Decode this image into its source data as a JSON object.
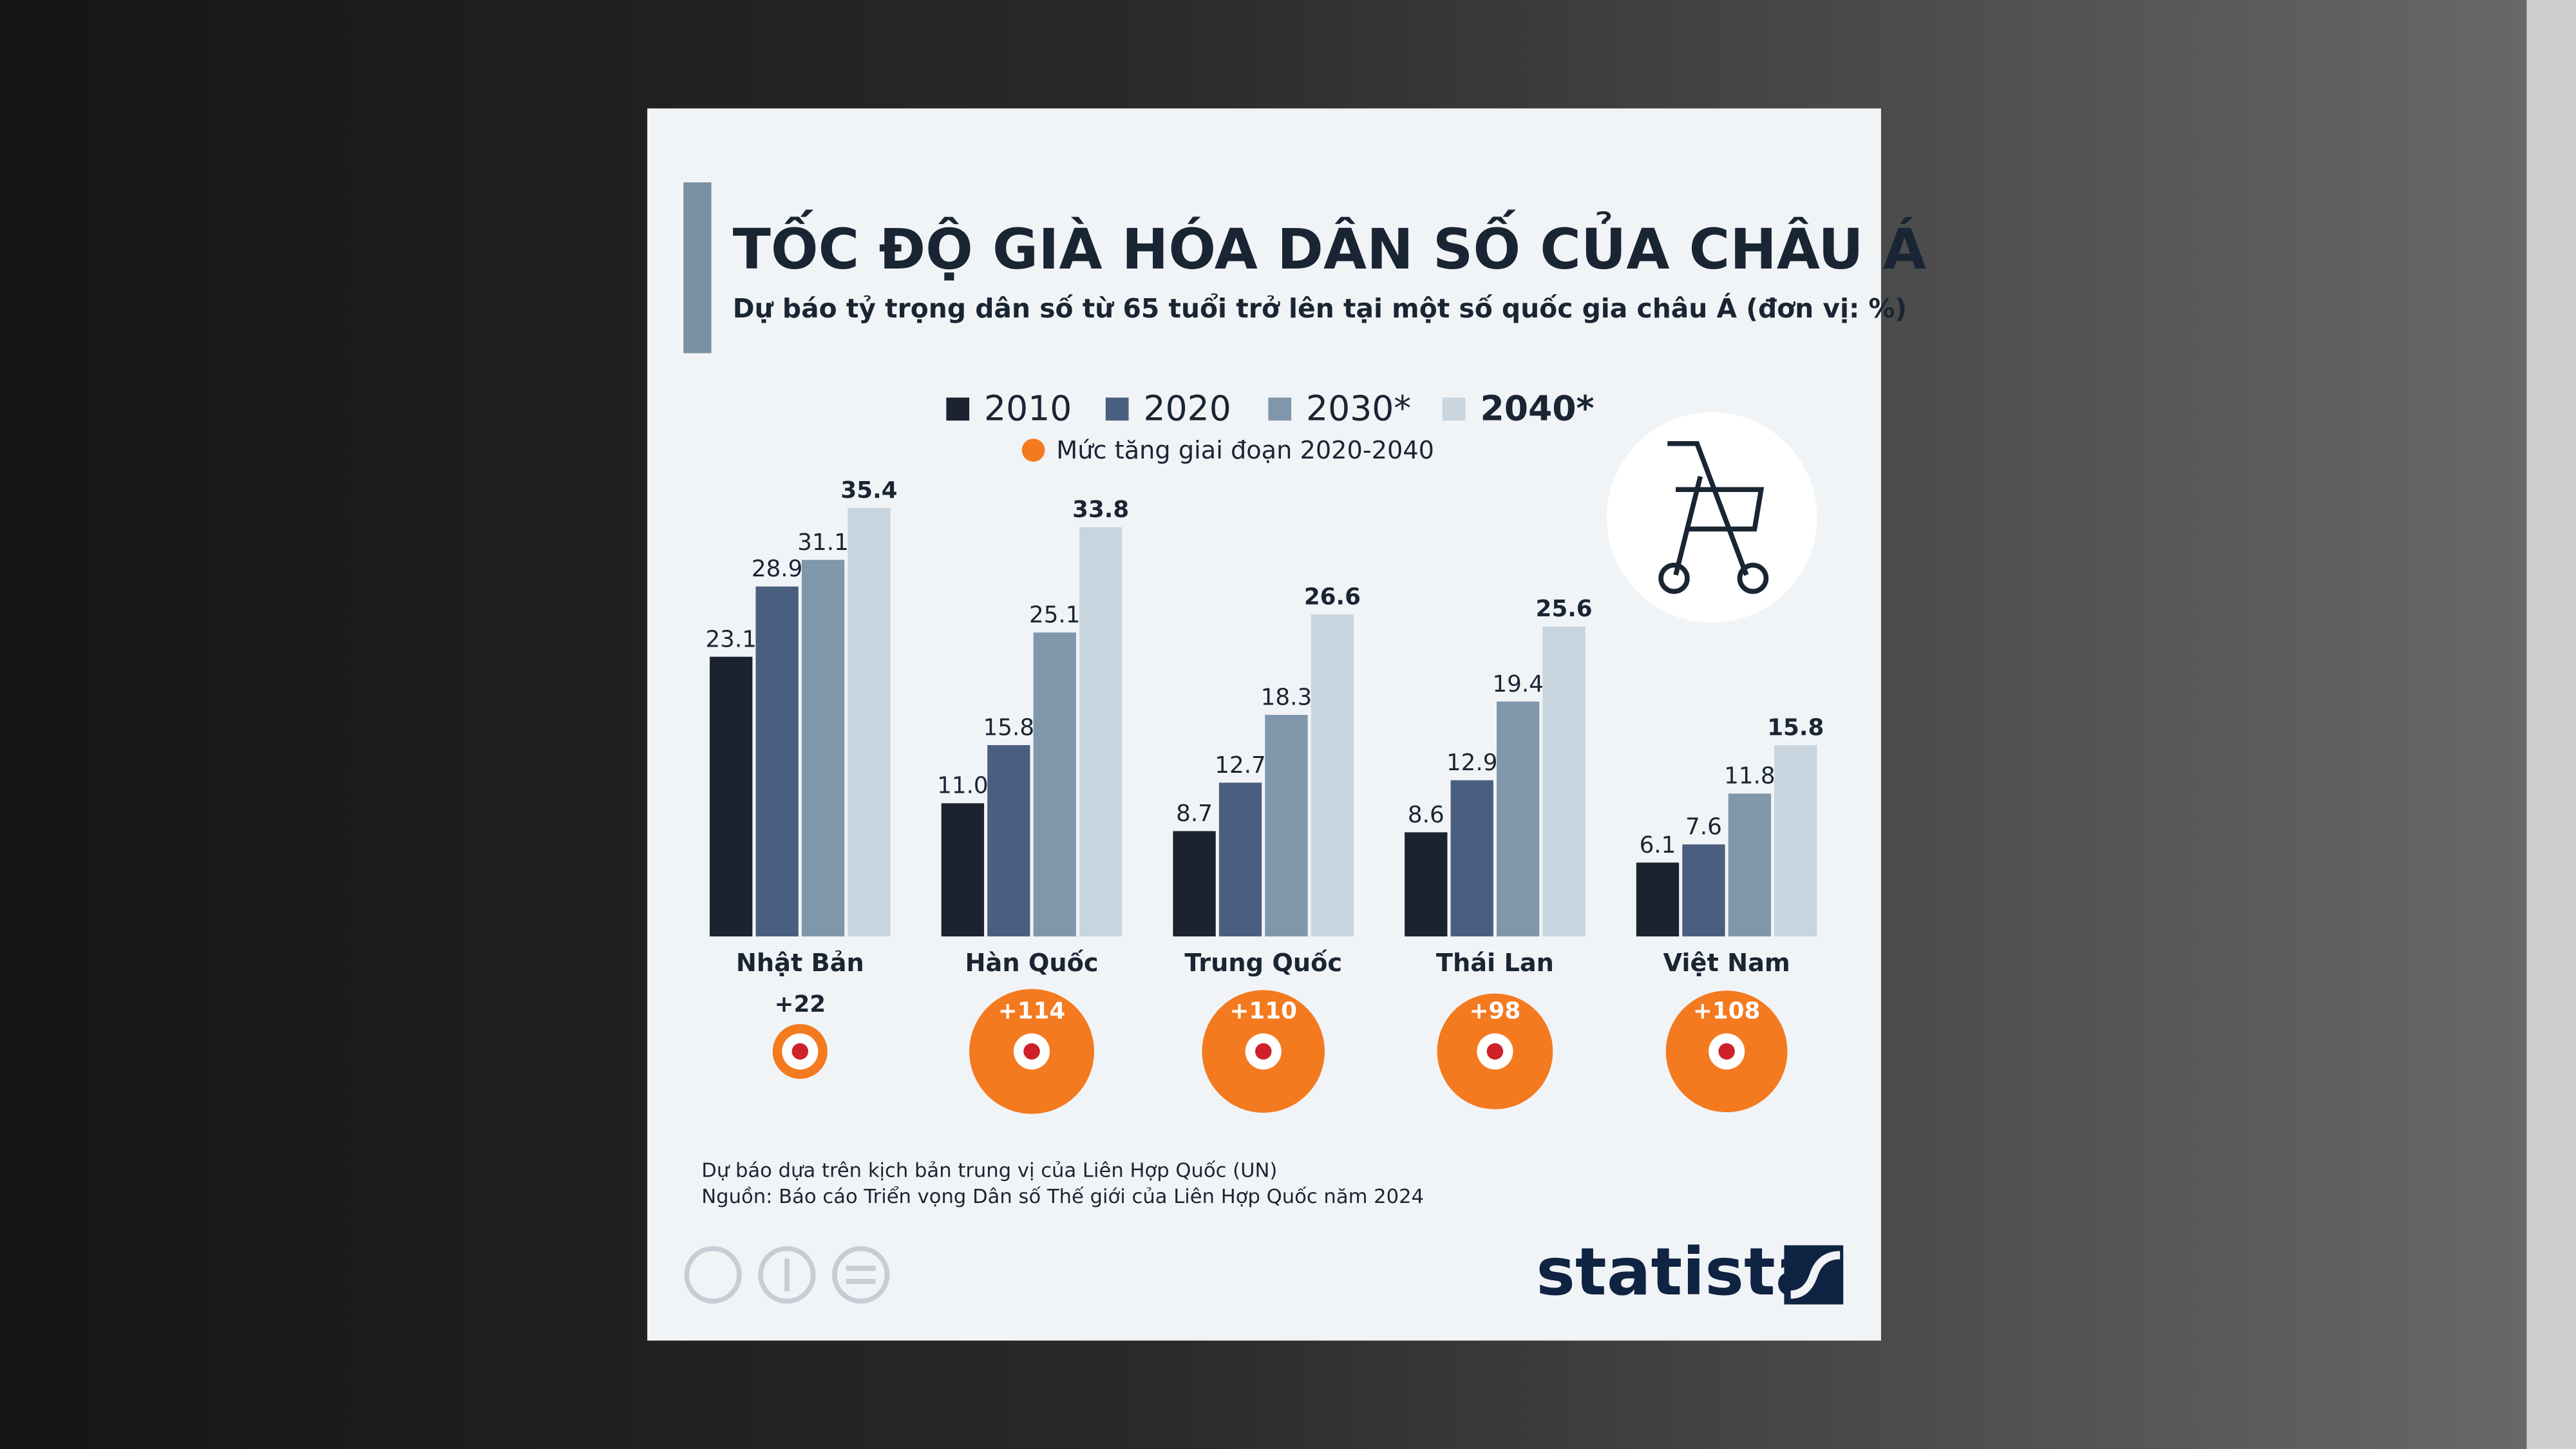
{
  "chart_data": {
    "type": "bar",
    "title": "TỐC ĐỘ GIÀ HÓA DÂN SỐ CỦA CHÂU Á",
    "subtitle": "Dự báo tỷ trọng dân số từ 65 tuổi trở lên tại một số quốc gia châu Á (đơn vị: %)",
    "categories": [
      "Nhật Bản",
      "Hàn Quốc",
      "Trung Quốc",
      "Thái Lan",
      "Việt Nam"
    ],
    "series": [
      {
        "name": "2010",
        "color": "#1b2330",
        "values": [
          23.1,
          11.0,
          8.7,
          8.6,
          6.1
        ],
        "value_labels": [
          "23.1",
          "11.0",
          "8.7",
          "8.6",
          "6.1"
        ]
      },
      {
        "name": "2020",
        "color": "#4a5e80",
        "values": [
          28.9,
          15.8,
          12.7,
          12.9,
          7.6
        ],
        "value_labels": [
          "28.9",
          "15.8",
          "12.7",
          "12.9",
          "7.6"
        ]
      },
      {
        "name": "2030*",
        "color": "#8096aa",
        "values": [
          31.1,
          25.1,
          18.3,
          19.4,
          11.8
        ],
        "value_labels": [
          "31.1",
          "25.1",
          "18.3",
          "19.4",
          "11.8"
        ]
      },
      {
        "name": "2040*",
        "color": "#c9d5de",
        "values": [
          35.4,
          33.8,
          26.6,
          25.6,
          15.8
        ],
        "value_labels": [
          "35.4",
          "33.8",
          "26.6",
          "25.6",
          "15.8"
        ]
      }
    ],
    "increase": {
      "name": "Mức tăng giai đoạn 2020-2040",
      "color": "#f47a20",
      "values": [
        22,
        114,
        110,
        98,
        108
      ],
      "value_labels": [
        "+22",
        "+114",
        "+110",
        "+98",
        "+108"
      ]
    },
    "notes": [
      "Dự báo dựa trên kịch bản trung vị của Liên Hợp Quốc (UN)",
      "Nguồn: Báo cáo Triển vọng Dân số Thế giới của Liên Hợp Quốc năm 2024"
    ],
    "brand": "statista"
  }
}
